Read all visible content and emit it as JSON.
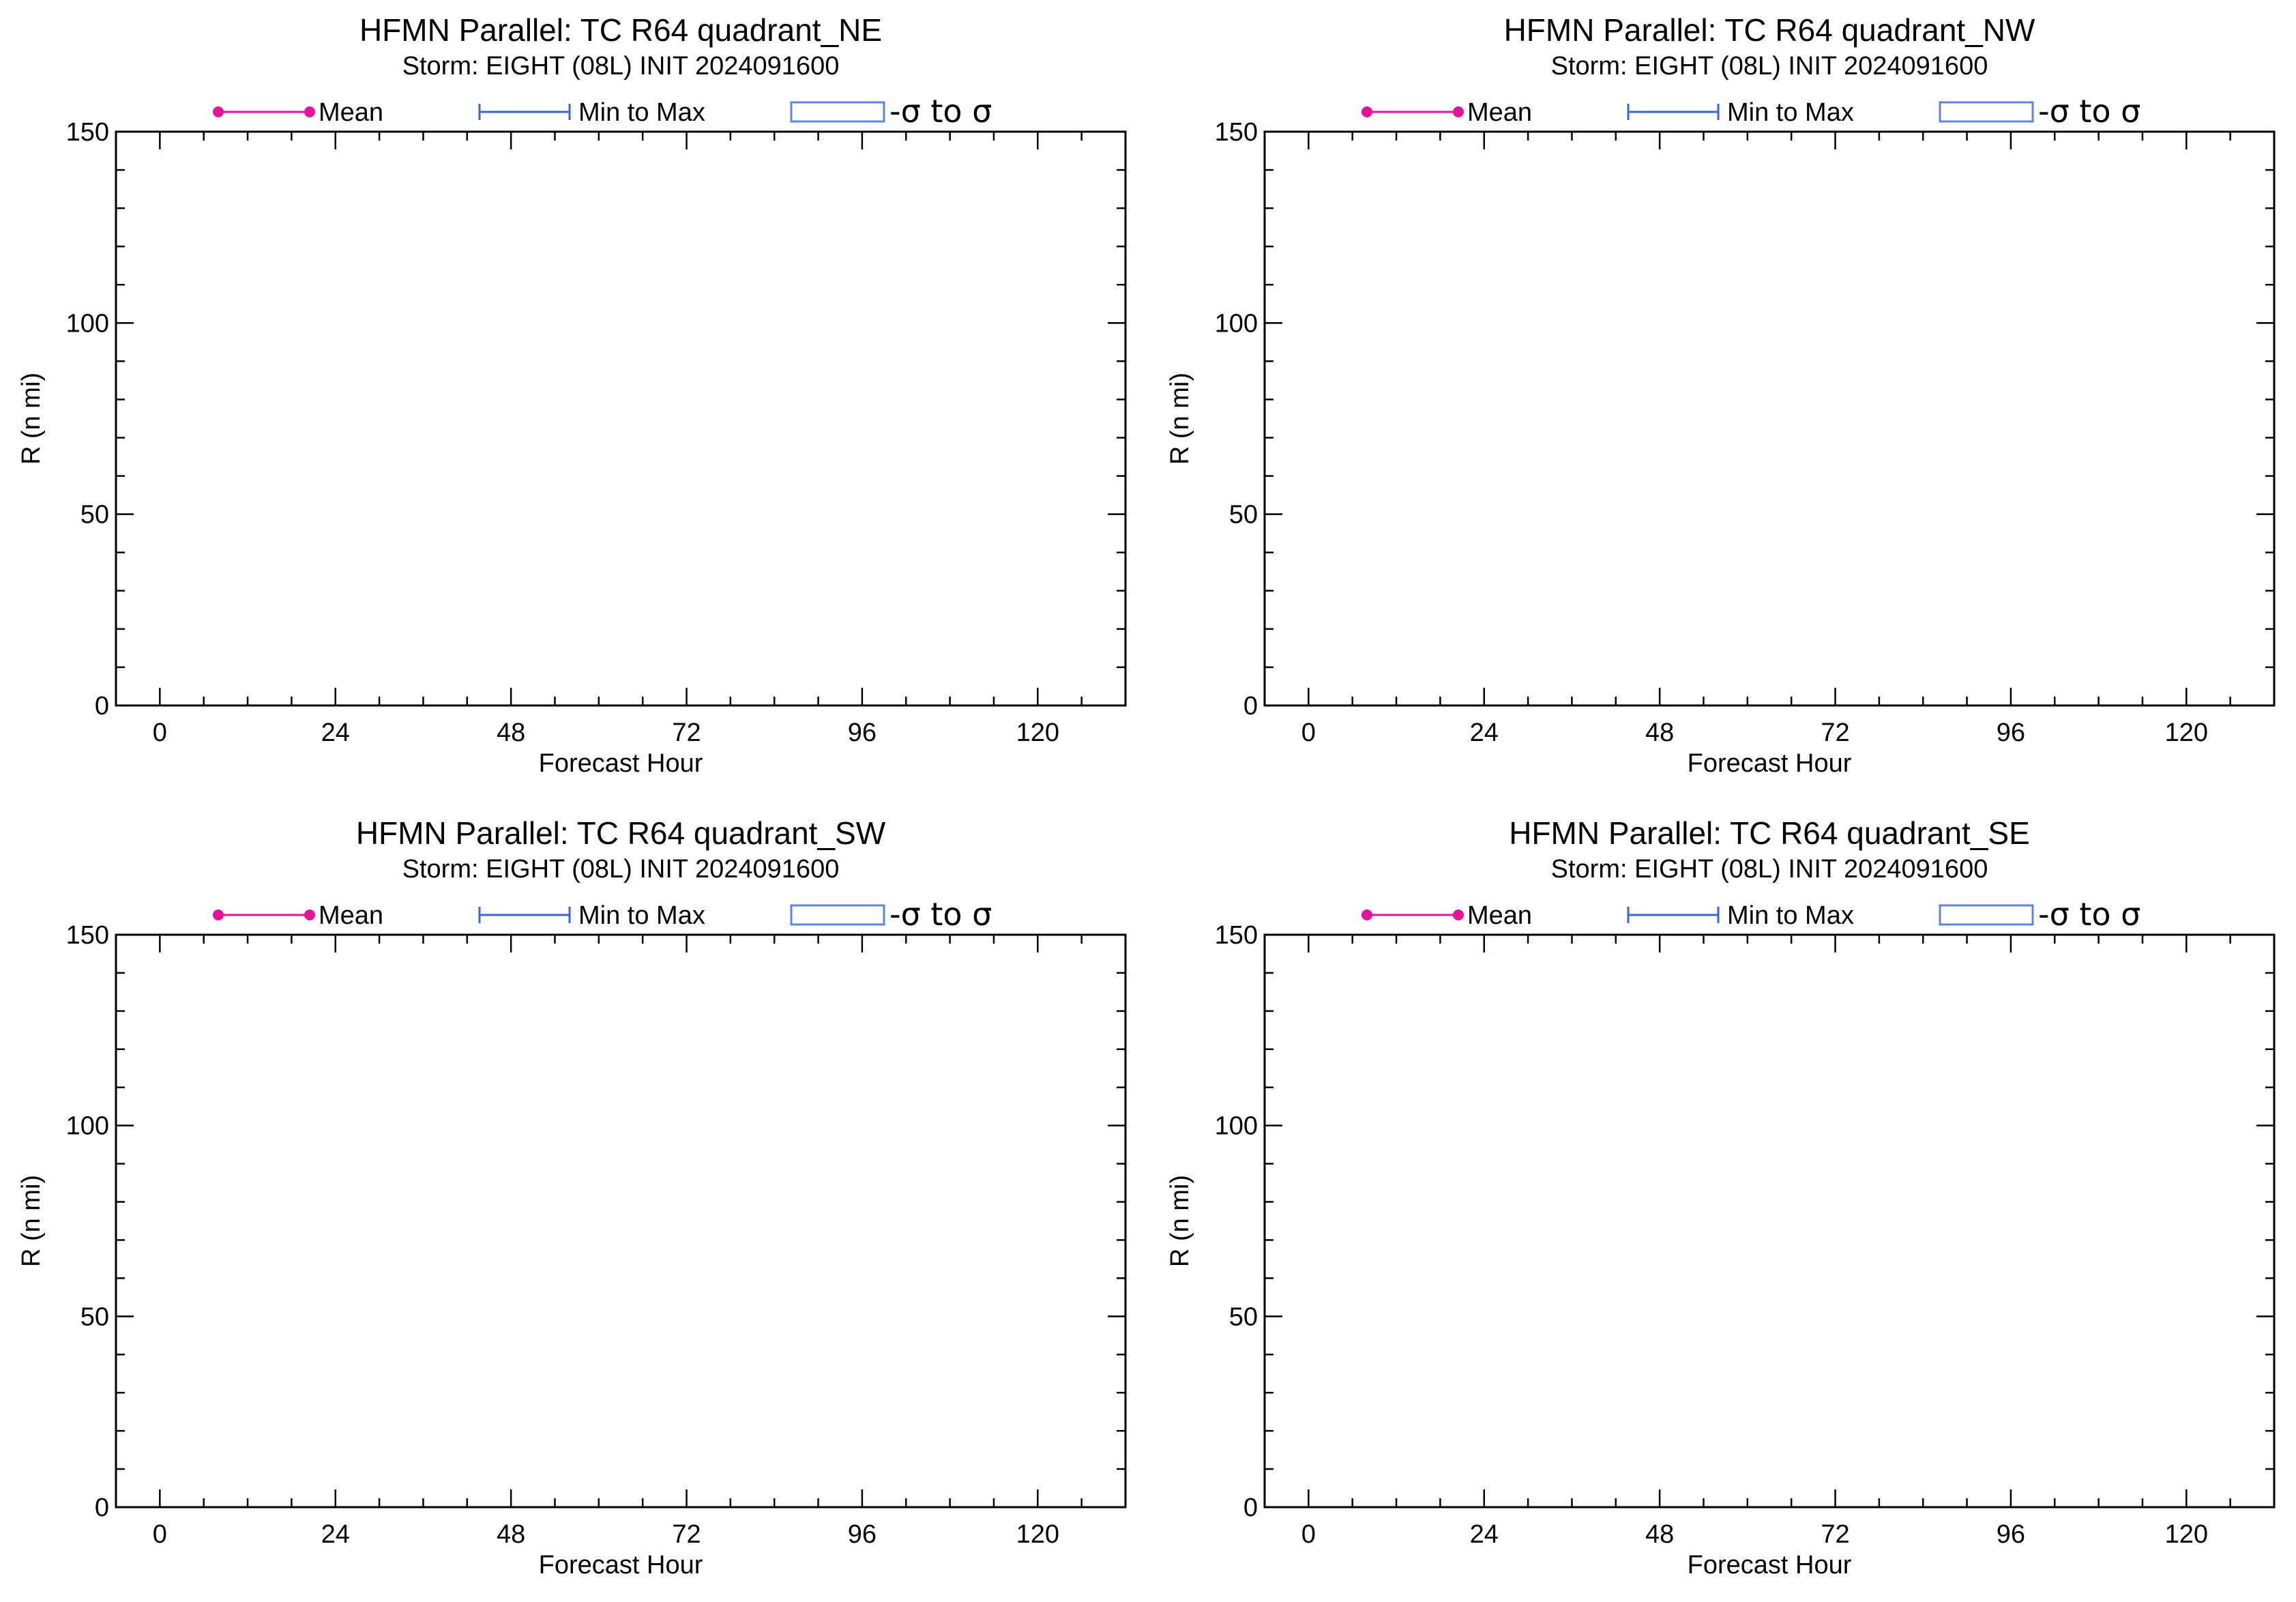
{
  "colors": {
    "mean": "#e5129a",
    "min_max": "#3a64d8",
    "sigma_box": "#5b86e6",
    "axes": "#000000",
    "background": "#ffffff"
  },
  "legend": {
    "mean_label": "Mean",
    "minmax_label": "Min to Max",
    "sigma_label": "-σ to σ"
  },
  "chart_data": [
    {
      "type": "line",
      "title": "HFMN Parallel: TC  R64 quadrant_NE",
      "subtitle": "Storm: EIGHT (08L) INIT 2024091600",
      "xlabel": "Forecast Hour",
      "ylabel": "R (n mi)",
      "xlim": [
        -6,
        132
      ],
      "ylim": [
        0,
        150
      ],
      "xticks": [
        0,
        24,
        48,
        72,
        96,
        120
      ],
      "yticks": [
        0,
        50,
        100,
        150
      ],
      "legend": "top",
      "series": []
    },
    {
      "type": "line",
      "title": "HFMN Parallel: TC  R64 quadrant_NW",
      "subtitle": "Storm: EIGHT (08L) INIT 2024091600",
      "xlabel": "Forecast Hour",
      "ylabel": "R (n mi)",
      "xlim": [
        -6,
        132
      ],
      "ylim": [
        0,
        150
      ],
      "xticks": [
        0,
        24,
        48,
        72,
        96,
        120
      ],
      "yticks": [
        0,
        50,
        100,
        150
      ],
      "legend": "top",
      "series": []
    },
    {
      "type": "line",
      "title": "HFMN Parallel: TC  R64 quadrant_SW",
      "subtitle": "Storm: EIGHT (08L) INIT 2024091600",
      "xlabel": "Forecast Hour",
      "ylabel": "R (n mi)",
      "xlim": [
        -6,
        132
      ],
      "ylim": [
        0,
        150
      ],
      "xticks": [
        0,
        24,
        48,
        72,
        96,
        120
      ],
      "yticks": [
        0,
        50,
        100,
        150
      ],
      "legend": "top",
      "series": []
    },
    {
      "type": "line",
      "title": "HFMN Parallel: TC  R64 quadrant_SE",
      "subtitle": "Storm: EIGHT (08L) INIT 2024091600",
      "xlabel": "Forecast Hour",
      "ylabel": "R (n mi)",
      "xlim": [
        -6,
        132
      ],
      "ylim": [
        0,
        150
      ],
      "xticks": [
        0,
        24,
        48,
        72,
        96,
        120
      ],
      "yticks": [
        0,
        50,
        100,
        150
      ],
      "legend": "top",
      "series": []
    }
  ]
}
